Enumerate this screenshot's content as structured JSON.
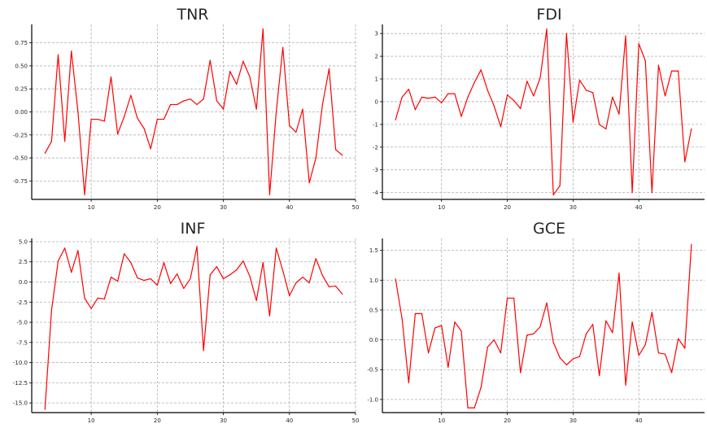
{
  "colors": {
    "series": "#ff0000",
    "grid": "#b0b0b0",
    "axis": "#000000"
  },
  "chart_data": [
    {
      "type": "line",
      "title": "TNR",
      "xlabel": "",
      "ylabel": "",
      "xlim": [
        1,
        50
      ],
      "ylim": [
        -0.95,
        0.95
      ],
      "grid": true,
      "xticks": [
        10,
        20,
        30,
        40,
        50
      ],
      "xtick_labels": [
        "10",
        "20",
        "30",
        "40",
        "50"
      ],
      "yticks": [
        -0.75,
        -0.5,
        -0.25,
        0.0,
        0.25,
        0.5,
        0.75
      ],
      "ytick_labels": [
        "-0.75",
        "-0.50",
        "-0.25",
        "0.00",
        "0.25",
        "0.50",
        "0.75"
      ],
      "series": [
        {
          "x": [
            3,
            4,
            5,
            6,
            7,
            8,
            9,
            10,
            11,
            12,
            13,
            14,
            15,
            16,
            17,
            18,
            19,
            20,
            21,
            22,
            23,
            24,
            25,
            26,
            27,
            28,
            29,
            30,
            31,
            32,
            33,
            34,
            35,
            36,
            37,
            38,
            39,
            40,
            41,
            42,
            43,
            44,
            45,
            46,
            47,
            48
          ],
          "values": [
            -0.45,
            -0.32,
            0.62,
            -0.32,
            0.66,
            0.0,
            -0.9,
            -0.08,
            -0.08,
            -0.1,
            0.38,
            -0.24,
            -0.05,
            0.18,
            -0.07,
            -0.18,
            -0.4,
            -0.08,
            -0.08,
            0.08,
            0.08,
            0.12,
            0.14,
            0.08,
            0.14,
            0.56,
            0.12,
            0.03,
            0.44,
            0.3,
            0.55,
            0.38,
            0.03,
            0.9,
            -0.9,
            0.0,
            0.7,
            -0.15,
            -0.22,
            0.03,
            -0.77,
            -0.5,
            0.08,
            0.47,
            -0.41,
            -0.47
          ]
        }
      ]
    },
    {
      "type": "line",
      "title": "FDI",
      "xlabel": "",
      "ylabel": "",
      "xlim": [
        1,
        50
      ],
      "ylim": [
        -4.3,
        3.4
      ],
      "grid": true,
      "xticks": [
        10,
        20,
        30,
        40
      ],
      "xtick_labels": [
        "10",
        "20",
        "30",
        "40"
      ],
      "yticks": [
        -4,
        -3,
        -2,
        -1,
        0,
        1,
        2,
        3
      ],
      "ytick_labels": [
        "-4",
        "-3",
        "-2",
        "-1",
        "0",
        "1",
        "2",
        "3"
      ],
      "series": [
        {
          "x": [
            3,
            4,
            5,
            6,
            7,
            8,
            9,
            10,
            11,
            12,
            13,
            14,
            15,
            16,
            17,
            18,
            19,
            20,
            21,
            22,
            23,
            24,
            25,
            26,
            27,
            28,
            29,
            30,
            31,
            32,
            33,
            34,
            35,
            36,
            37,
            38,
            39,
            40,
            41,
            42,
            43,
            44,
            45,
            46,
            47,
            48
          ],
          "values": [
            -0.8,
            0.2,
            0.55,
            -0.35,
            0.2,
            0.15,
            0.2,
            -0.05,
            0.35,
            0.35,
            -0.65,
            0.2,
            0.85,
            1.4,
            0.5,
            -0.2,
            -1.1,
            0.3,
            0.05,
            -0.3,
            0.9,
            0.25,
            1.05,
            3.2,
            -4.1,
            -3.7,
            3.0,
            -0.9,
            0.95,
            0.5,
            0.4,
            -1.0,
            -1.2,
            0.2,
            -0.55,
            2.9,
            -4.0,
            2.55,
            1.8,
            -4.0,
            1.6,
            0.25,
            1.35,
            1.35,
            -2.65,
            -1.2
          ]
        }
      ]
    },
    {
      "type": "line",
      "title": "INF",
      "xlabel": "",
      "ylabel": "",
      "xlim": [
        1,
        50
      ],
      "ylim": [
        -16.2,
        5.4
      ],
      "grid": true,
      "xticks": [
        10,
        20,
        30,
        40,
        50
      ],
      "xtick_labels": [
        "10",
        "20",
        "30",
        "40",
        "50"
      ],
      "yticks": [
        -15.0,
        -12.5,
        -10.0,
        -7.5,
        -5.0,
        -2.5,
        0.0,
        2.5,
        5.0
      ],
      "ytick_labels": [
        "-15.0",
        "-12.5",
        "-10.0",
        "-7.5",
        "-5.0",
        "-2.5",
        "0.0",
        "2.5",
        "5.0"
      ],
      "series": [
        {
          "x": [
            3,
            4,
            5,
            6,
            7,
            8,
            9,
            10,
            11,
            12,
            13,
            14,
            15,
            16,
            17,
            18,
            19,
            20,
            21,
            22,
            23,
            24,
            25,
            26,
            27,
            28,
            29,
            30,
            31,
            32,
            33,
            34,
            35,
            36,
            37,
            38,
            39,
            40,
            41,
            42,
            43,
            44,
            45,
            46,
            47,
            48
          ],
          "values": [
            -15.8,
            -3.5,
            2.6,
            4.2,
            1.2,
            3.9,
            -2.0,
            -3.3,
            -2.0,
            -2.1,
            0.6,
            0.1,
            3.5,
            2.4,
            0.5,
            0.2,
            0.4,
            -0.4,
            2.4,
            -0.2,
            1.0,
            -0.8,
            0.4,
            4.4,
            -8.5,
            0.9,
            1.9,
            0.4,
            0.9,
            1.5,
            2.6,
            0.7,
            -2.3,
            2.4,
            -4.2,
            4.2,
            1.4,
            -1.7,
            -0.1,
            0.6,
            -0.1,
            2.9,
            0.8,
            -0.6,
            -0.5,
            -1.5
          ]
        }
      ]
    },
    {
      "type": "line",
      "title": "GCE",
      "xlabel": "",
      "ylabel": "",
      "xlim": [
        1,
        50
      ],
      "ylim": [
        -1.22,
        1.7
      ],
      "grid": true,
      "xticks": [
        10,
        20,
        30,
        40
      ],
      "xtick_labels": [
        "10",
        "20",
        "30",
        "40"
      ],
      "yticks": [
        -1.0,
        -0.5,
        0.0,
        0.5,
        1.0,
        1.5
      ],
      "ytick_labels": [
        "-1.0",
        "-0.5",
        "0.0",
        "0.5",
        "1.0",
        "1.5"
      ],
      "series": [
        {
          "x": [
            3,
            4,
            5,
            6,
            7,
            8,
            9,
            10,
            11,
            12,
            13,
            14,
            15,
            16,
            17,
            18,
            19,
            20,
            21,
            22,
            23,
            24,
            25,
            26,
            27,
            28,
            29,
            30,
            31,
            32,
            33,
            34,
            35,
            36,
            37,
            38,
            39,
            40,
            41,
            42,
            43,
            44,
            45,
            46,
            47,
            48
          ],
          "values": [
            1.02,
            0.35,
            -0.72,
            0.44,
            0.44,
            -0.22,
            0.2,
            0.24,
            -0.46,
            0.3,
            0.15,
            -1.14,
            -1.14,
            -0.8,
            -0.12,
            0.0,
            -0.22,
            0.7,
            0.7,
            -0.55,
            0.08,
            0.1,
            0.22,
            0.62,
            -0.04,
            -0.3,
            -0.42,
            -0.32,
            -0.28,
            0.1,
            0.26,
            -0.6,
            0.32,
            0.12,
            1.12,
            -0.76,
            0.3,
            -0.26,
            -0.08,
            0.46,
            -0.22,
            -0.24,
            -0.55,
            0.02,
            -0.14,
            1.6
          ]
        }
      ]
    }
  ]
}
